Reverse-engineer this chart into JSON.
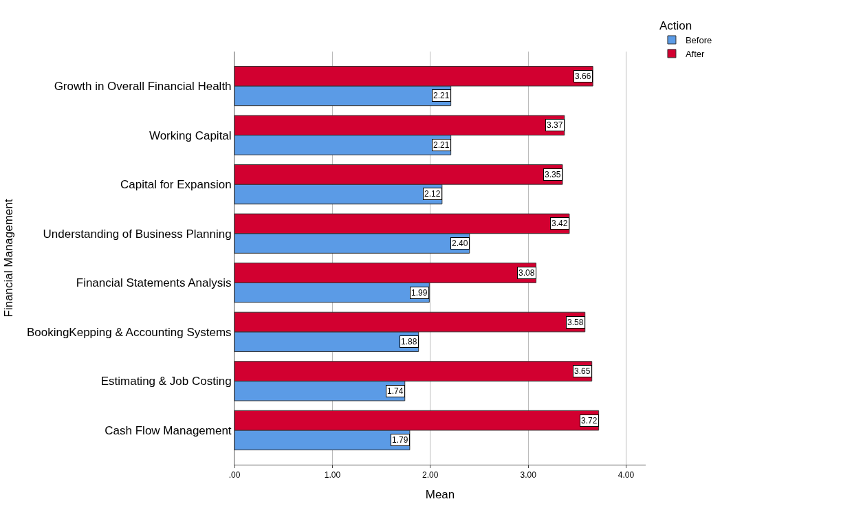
{
  "chart_data": {
    "type": "bar",
    "orientation": "horizontal",
    "xlabel": "Mean",
    "ylabel": "Financial Management",
    "legend_title": "Action",
    "categories": [
      "Growth in Overall Financial Health",
      "Working Capital",
      "Capital for Expansion",
      "Understanding of Business Planning",
      "Financial Statements Analysis",
      "BookingKepping & Accounting Systems",
      "Estimating & Job Costing",
      "Cash Flow Management"
    ],
    "series": [
      {
        "name": "Before",
        "color": "#5b9be6",
        "values": [
          2.21,
          2.21,
          2.12,
          2.4,
          1.99,
          1.88,
          1.74,
          1.79
        ],
        "value_labels": [
          "2.21",
          "2.21",
          "2.12",
          "2.40",
          "1.99",
          "1.88",
          "1.74",
          "1.79"
        ]
      },
      {
        "name": "After",
        "color": "#d20030",
        "values": [
          3.66,
          3.37,
          3.35,
          3.42,
          3.08,
          3.58,
          3.65,
          3.72
        ],
        "value_labels": [
          "3.66",
          "3.37",
          "3.35",
          "3.42",
          "3.08",
          "3.58",
          "3.65",
          "3.72"
        ]
      }
    ],
    "xlim": [
      0,
      4.2
    ],
    "xticks": [
      {
        "value": 0,
        "label": ".00"
      },
      {
        "value": 1,
        "label": "1.00"
      },
      {
        "value": 2,
        "label": "2.00"
      },
      {
        "value": 3,
        "label": "3.00"
      },
      {
        "value": 4,
        "label": "4.00"
      }
    ],
    "grid": "x",
    "legend": "top right"
  }
}
